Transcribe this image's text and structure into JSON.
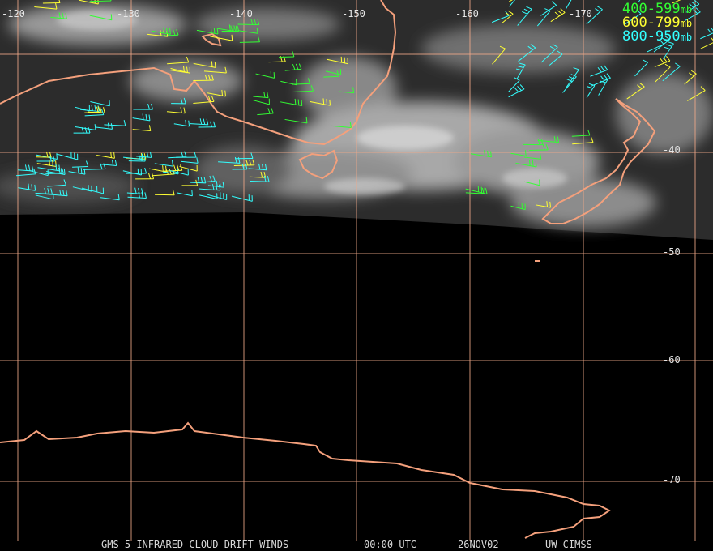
{
  "map": {
    "longitude_labels": [
      "-120",
      "-130",
      "-140",
      "-150",
      "-160",
      "-170"
    ],
    "latitude_labels": [
      "-40",
      "-50",
      "-60",
      "-70"
    ],
    "legend": [
      {
        "range": "400-599",
        "unit": "mb",
        "color": "#33ff33"
      },
      {
        "range": "600-799",
        "unit": "mb",
        "color": "#ffff33"
      },
      {
        "range": "800-950",
        "unit": "mb",
        "color": "#33ffff"
      }
    ],
    "footer": {
      "product": "GMS-5 INFRARED-CLOUD DRIFT WINDS",
      "time": "00:00 UTC",
      "date": "26NOV02",
      "source": "UW-CIMSS"
    }
  }
}
